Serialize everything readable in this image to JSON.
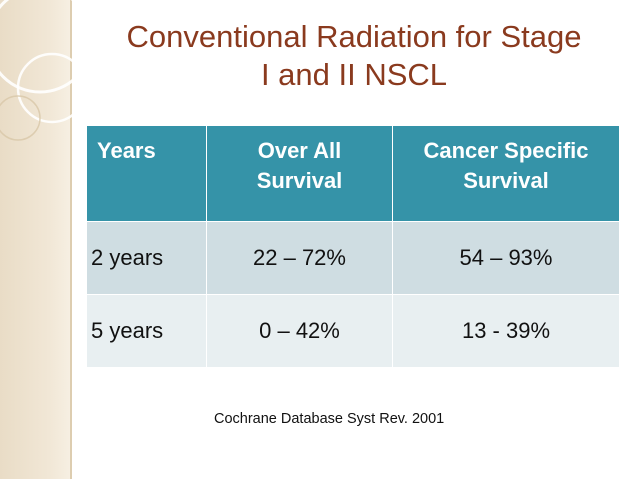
{
  "title": {
    "line1": "Conventional Radiation for Stage",
    "line2": "I and II NSCL"
  },
  "table": {
    "headers": {
      "col1": "Years",
      "col2_line1": "Over All",
      "col2_line2": "Survival",
      "col3_line1": "Cancer Specific",
      "col3_line2": "Survival"
    },
    "rows": [
      {
        "years": "2 years",
        "overall": "22 – 72%",
        "cancer_specific": "54 – 93%"
      },
      {
        "years": "5 years",
        "overall": "0 – 42%",
        "cancer_specific": "13  - 39%"
      }
    ]
  },
  "citation": "Cochrane Database Syst Rev. 2001",
  "colors": {
    "title": "#8a3a1e",
    "header_bg": "#3593a8",
    "row1_bg": "#cfdde2",
    "row2_bg": "#e8eff1",
    "side_band": "#e9dcc6"
  }
}
